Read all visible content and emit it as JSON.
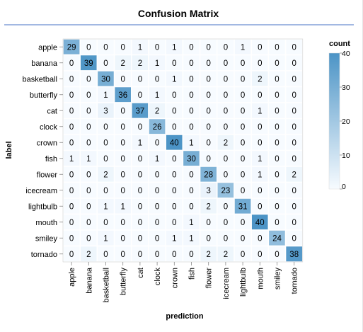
{
  "chart_data": {
    "type": "heatmap",
    "title": "Confusion Matrix",
    "xlabel": "prediction",
    "ylabel": "label",
    "legend_title": "count",
    "legend_ticks": [
      "0",
      "10",
      "20",
      "30",
      "40"
    ],
    "legend_range": [
      0,
      40
    ],
    "legend_placement": "right",
    "colors": {
      "low": "#f7fbff",
      "high": "#4c94c6",
      "title_rule": "#4472c4"
    },
    "categories": [
      "apple",
      "banana",
      "basketball",
      "butterfly",
      "cat",
      "clock",
      "crown",
      "fish",
      "flower",
      "icecream",
      "lightbulb",
      "mouth",
      "smiley",
      "tornado"
    ],
    "matrix": [
      [
        29,
        0,
        0,
        0,
        1,
        0,
        1,
        0,
        0,
        0,
        1,
        0,
        0,
        0
      ],
      [
        0,
        39,
        0,
        2,
        2,
        1,
        0,
        0,
        0,
        0,
        0,
        0,
        0,
        0
      ],
      [
        0,
        0,
        30,
        0,
        0,
        0,
        1,
        0,
        0,
        0,
        0,
        2,
        0,
        0
      ],
      [
        0,
        0,
        1,
        36,
        0,
        1,
        0,
        0,
        0,
        0,
        0,
        0,
        0,
        0
      ],
      [
        0,
        0,
        3,
        0,
        37,
        2,
        0,
        0,
        0,
        0,
        0,
        1,
        0,
        0
      ],
      [
        0,
        0,
        0,
        0,
        0,
        26,
        0,
        0,
        0,
        0,
        0,
        0,
        0,
        0
      ],
      [
        0,
        0,
        0,
        0,
        1,
        0,
        40,
        1,
        0,
        2,
        0,
        0,
        0,
        0
      ],
      [
        1,
        1,
        0,
        0,
        0,
        1,
        0,
        30,
        0,
        0,
        0,
        1,
        0,
        0
      ],
      [
        0,
        0,
        2,
        0,
        0,
        0,
        0,
        0,
        28,
        0,
        0,
        1,
        0,
        2
      ],
      [
        0,
        0,
        0,
        0,
        0,
        0,
        0,
        0,
        3,
        23,
        0,
        0,
        0,
        0
      ],
      [
        0,
        0,
        1,
        1,
        0,
        0,
        0,
        0,
        2,
        0,
        31,
        0,
        0,
        0
      ],
      [
        0,
        0,
        0,
        0,
        0,
        0,
        0,
        1,
        0,
        0,
        0,
        40,
        0,
        0
      ],
      [
        0,
        0,
        1,
        0,
        0,
        0,
        1,
        1,
        0,
        0,
        0,
        0,
        24,
        0
      ],
      [
        0,
        2,
        0,
        0,
        0,
        0,
        0,
        0,
        2,
        2,
        0,
        0,
        0,
        38
      ]
    ]
  }
}
